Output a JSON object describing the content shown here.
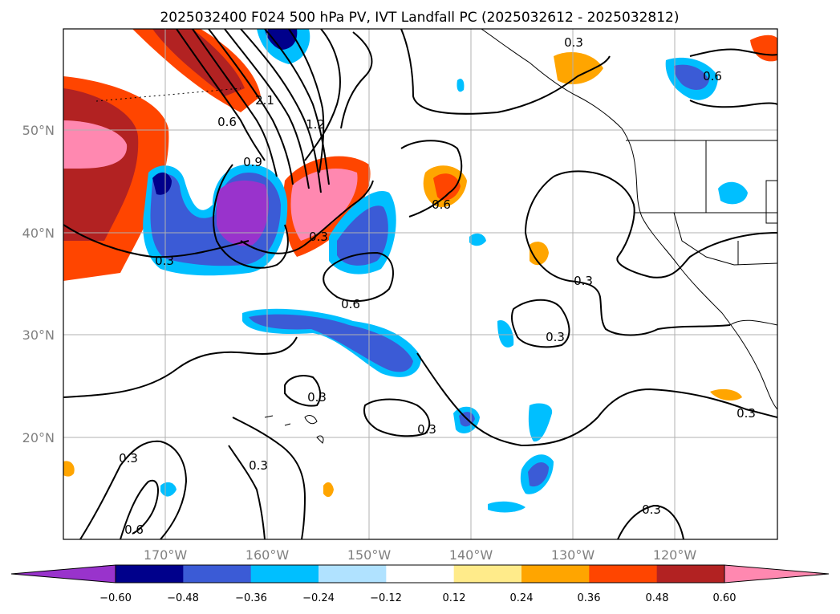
{
  "title": "2025032400 F024 500 hPa PV, IVT Landfall PC (2025032612 - 2025032812)",
  "lat_ticks": [
    "50°N",
    "40°N",
    "30°N",
    "20°N"
  ],
  "lon_ticks": [
    "170°W",
    "160°W",
    "150°W",
    "140°W",
    "130°W",
    "120°W"
  ],
  "colorbar": {
    "tick_labels": [
      "−0.60",
      "−0.48",
      "−0.36",
      "−0.24",
      "−0.12",
      "0.12",
      "0.24",
      "0.36",
      "0.48",
      "0.60"
    ],
    "colors": [
      "#9933cc",
      "#00008b",
      "#3b5bd6",
      "#00bfff",
      "#b0e2ff",
      "#ffffff",
      "#ffeb8a",
      "#ffa500",
      "#ff4500",
      "#b22222",
      "#ff88b0"
    ]
  },
  "contour_labels": [
    "0.3",
    "0.6",
    "0.9",
    "1.2",
    "2.1"
  ]
}
